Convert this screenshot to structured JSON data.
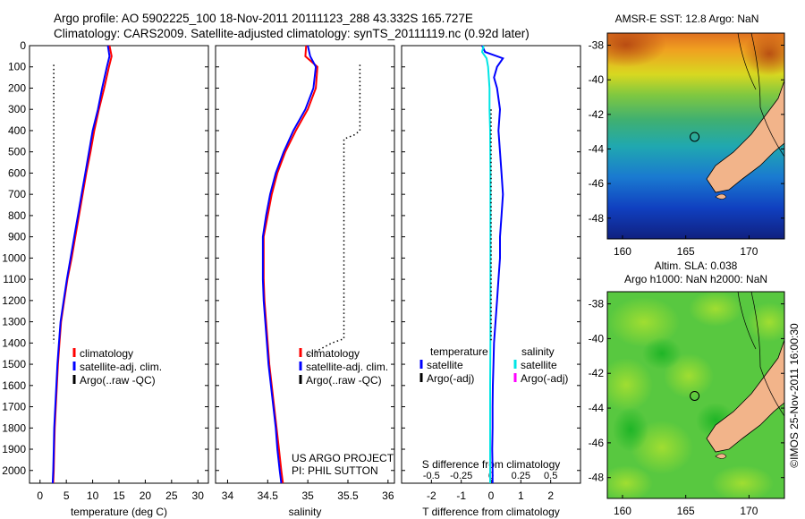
{
  "header": {
    "line1": "Argo profile: AO 5902225_100 18-Nov-2011 20111123_288 43.332S 165.727E",
    "line2": "Climatology: CARS2009. Satellite-adjusted climatology: synTS_20111119.nc (0.92d later)"
  },
  "shared": {
    "depth_ticks": [
      "0",
      "100",
      "200",
      "300",
      "400",
      "500",
      "600",
      "700",
      "800",
      "900",
      "1000",
      "1100",
      "1200",
      "1300",
      "1400",
      "1500",
      "1600",
      "1700",
      "1800",
      "1900",
      "2000"
    ],
    "ylim": [
      0,
      2060
    ]
  },
  "colors": {
    "climatology": "#ff0000",
    "satellite": "#0000ff",
    "argo": "#000000",
    "sat_salinity": "#00e5e5",
    "argo_salinity": "#ff00ff",
    "land": "#f2b48a"
  },
  "chart_data": [
    {
      "type": "line",
      "xlabel": "temperature (deg C)",
      "xticks": [
        "0",
        "5",
        "10",
        "15",
        "20",
        "25",
        "30"
      ],
      "xlim": [
        -2,
        32
      ],
      "legend": [
        "climatology",
        "satellite-adj. clim.",
        "Argo(..raw -QC)"
      ],
      "series": [
        {
          "name": "climatology",
          "color": "#ff0000",
          "points": [
            [
              13.2,
              0
            ],
            [
              13.6,
              50
            ],
            [
              13.1,
              100
            ],
            [
              12.2,
              200
            ],
            [
              11.2,
              300
            ],
            [
              10.3,
              400
            ],
            [
              9.6,
              500
            ],
            [
              8.8,
              600
            ],
            [
              8.1,
              700
            ],
            [
              7.4,
              800
            ],
            [
              6.7,
              900
            ],
            [
              6.0,
              1000
            ],
            [
              5.2,
              1100
            ],
            [
              4.6,
              1200
            ],
            [
              4.0,
              1300
            ],
            [
              3.7,
              1400
            ],
            [
              3.4,
              1500
            ],
            [
              3.2,
              1600
            ],
            [
              3.0,
              1700
            ],
            [
              2.8,
              1800
            ],
            [
              2.7,
              1900
            ],
            [
              2.6,
              2000
            ],
            [
              2.5,
              2060
            ]
          ]
        },
        {
          "name": "satellite-adj. clim.",
          "color": "#0000ff",
          "points": [
            [
              12.9,
              0
            ],
            [
              13.2,
              50
            ],
            [
              12.7,
              100
            ],
            [
              11.8,
              200
            ],
            [
              11.0,
              300
            ],
            [
              10.0,
              400
            ],
            [
              9.3,
              500
            ],
            [
              8.6,
              600
            ],
            [
              7.9,
              700
            ],
            [
              7.2,
              800
            ],
            [
              6.5,
              900
            ],
            [
              5.8,
              1000
            ],
            [
              5.1,
              1100
            ],
            [
              4.5,
              1200
            ],
            [
              3.9,
              1300
            ],
            [
              3.6,
              1400
            ],
            [
              3.3,
              1500
            ],
            [
              3.1,
              1600
            ],
            [
              2.9,
              1700
            ],
            [
              2.7,
              1800
            ],
            [
              2.6,
              1900
            ],
            [
              2.5,
              2000
            ],
            [
              2.4,
              2060
            ]
          ]
        },
        {
          "name": "Argo(..raw -QC)",
          "color": "#000000",
          "dotted": true,
          "points": [
            [
              2.6,
              90
            ],
            [
              2.6,
              1400
            ]
          ]
        }
      ]
    },
    {
      "type": "line",
      "xlabel": "salinity",
      "xticks": [
        "34",
        "34.5",
        "35",
        "35.5",
        "36"
      ],
      "xlim": [
        33.85,
        36.08
      ],
      "legend": [
        "climatology",
        "satellite-adj. clim.",
        "Argo(..raw -QC)"
      ],
      "annotation": [
        "US ARGO PROJECT",
        "PI: PHIL SUTTON"
      ],
      "series": [
        {
          "name": "climatology",
          "color": "#ff0000",
          "points": [
            [
              34.98,
              0
            ],
            [
              34.97,
              50
            ],
            [
              35.12,
              100
            ],
            [
              35.1,
              200
            ],
            [
              35.0,
              300
            ],
            [
              34.85,
              400
            ],
            [
              34.72,
              500
            ],
            [
              34.62,
              600
            ],
            [
              34.55,
              700
            ],
            [
              34.5,
              800
            ],
            [
              34.45,
              900
            ],
            [
              34.45,
              1000
            ],
            [
              34.45,
              1100
            ],
            [
              34.46,
              1200
            ],
            [
              34.48,
              1300
            ],
            [
              34.5,
              1400
            ],
            [
              34.52,
              1500
            ],
            [
              34.55,
              1600
            ],
            [
              34.58,
              1700
            ],
            [
              34.61,
              1800
            ],
            [
              34.64,
              1900
            ],
            [
              34.67,
              2000
            ],
            [
              34.69,
              2060
            ]
          ]
        },
        {
          "name": "satellite-adj. clim.",
          "color": "#0000ff",
          "points": [
            [
              35.0,
              0
            ],
            [
              35.03,
              50
            ],
            [
              35.1,
              100
            ],
            [
              35.07,
              200
            ],
            [
              34.97,
              300
            ],
            [
              34.82,
              400
            ],
            [
              34.7,
              500
            ],
            [
              34.6,
              600
            ],
            [
              34.53,
              700
            ],
            [
              34.48,
              800
            ],
            [
              34.44,
              900
            ],
            [
              34.44,
              1000
            ],
            [
              34.44,
              1100
            ],
            [
              34.45,
              1200
            ],
            [
              34.47,
              1300
            ],
            [
              34.49,
              1400
            ],
            [
              34.51,
              1500
            ],
            [
              34.54,
              1600
            ],
            [
              34.57,
              1700
            ],
            [
              34.6,
              1800
            ],
            [
              34.62,
              1900
            ],
            [
              34.65,
              2000
            ],
            [
              34.67,
              2060
            ]
          ]
        },
        {
          "name": "Argo(..raw -QC)",
          "color": "#000000",
          "dotted": true,
          "points": [
            [
              35.65,
              90
            ],
            [
              35.65,
              400
            ],
            [
              35.58,
              420
            ],
            [
              35.45,
              440
            ],
            [
              35.45,
              1380
            ],
            [
              35.3,
              1400
            ],
            [
              35.05,
              1450
            ],
            [
              34.97,
              1460
            ]
          ]
        }
      ]
    },
    {
      "type": "line",
      "xlabel": "T difference from climatology",
      "xlabel_top": "S difference from climatology",
      "xticks": [
        "-2",
        "-1",
        "0",
        "1",
        "2"
      ],
      "xticks_top": [
        "-0.5",
        "-0.25",
        "0",
        "0.25",
        "0.5"
      ],
      "xlim": [
        -3,
        3
      ],
      "legend_left_title": "temperature",
      "legend_left": [
        "satellite",
        "Argo(-adj)"
      ],
      "legend_right_title": "salinity",
      "legend_right": [
        "satellite",
        "Argo(-adj)"
      ],
      "series": [
        {
          "name": "temperature satellite",
          "color": "#0000ff",
          "points": [
            [
              -0.3,
              0
            ],
            [
              -0.2,
              30
            ],
            [
              0.4,
              60
            ],
            [
              0.2,
              100
            ],
            [
              0.1,
              150
            ],
            [
              0.2,
              200
            ],
            [
              0.3,
              300
            ],
            [
              0.25,
              400
            ],
            [
              0.3,
              500
            ],
            [
              0.35,
              600
            ],
            [
              0.4,
              700
            ],
            [
              0.35,
              800
            ],
            [
              0.3,
              900
            ],
            [
              0.3,
              1000
            ],
            [
              0.25,
              1100
            ],
            [
              0.2,
              1200
            ],
            [
              0.15,
              1300
            ],
            [
              0.1,
              1400
            ],
            [
              0.08,
              1500
            ],
            [
              0.06,
              1600
            ],
            [
              0.05,
              1700
            ],
            [
              0.05,
              1800
            ],
            [
              0.04,
              1900
            ],
            [
              0.05,
              2000
            ],
            [
              0.05,
              2060
            ]
          ]
        },
        {
          "name": "salinity satellite",
          "color": "#00e5e5",
          "points": [
            [
              -0.25,
              0
            ],
            [
              -0.3,
              30
            ],
            [
              -0.15,
              60
            ],
            [
              -0.1,
              100
            ],
            [
              -0.05,
              200
            ],
            [
              -0.05,
              300
            ],
            [
              -0.03,
              400
            ],
            [
              -0.02,
              600
            ],
            [
              -0.02,
              800
            ],
            [
              -0.02,
              1000
            ],
            [
              -0.02,
              1200
            ],
            [
              -0.02,
              1400
            ],
            [
              -0.03,
              1600
            ],
            [
              -0.03,
              1800
            ],
            [
              -0.03,
              2000
            ],
            [
              -0.03,
              2060
            ]
          ]
        },
        {
          "name": "Argo(-adj)",
          "color": "#000000",
          "dotted": true,
          "points": [
            [
              0.0,
              300
            ],
            [
              0.0,
              1400
            ]
          ]
        }
      ]
    }
  ],
  "maps": {
    "sst": {
      "title": "AMSR-E SST: 12.8 Argo: NaN",
      "lat_ticks": [
        "-38",
        "-40",
        "-42",
        "-44",
        "-46",
        "-48"
      ],
      "lon_ticks": [
        "160",
        "165",
        "170"
      ],
      "marker": [
        165.7,
        -43.3
      ]
    },
    "sla": {
      "title_line1": "Altim. SLA: 0.038",
      "title_line2": "Argo h1000: NaN h2000: NaN",
      "lat_ticks": [
        "-38",
        "-40",
        "-42",
        "-44",
        "-46",
        "-48"
      ],
      "lon_ticks": [
        "160",
        "165",
        "170"
      ],
      "marker": [
        165.7,
        -43.3
      ]
    }
  },
  "side_stamp": "©IMOS 25-Nov-2011 16:00:30"
}
